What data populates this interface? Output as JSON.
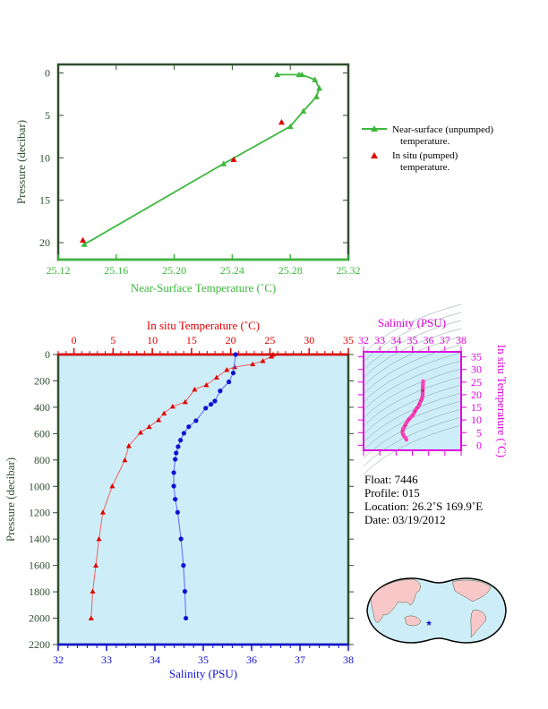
{
  "chart_data": [
    {
      "type": "line",
      "id": "surface",
      "xlabel": "Near-Surface Temperature (˚C)",
      "ylabel": "Pressure (decibar)",
      "xlim": [
        25.12,
        25.32
      ],
      "ylim": [
        -1,
        22
      ],
      "xticks": [
        "25.12",
        "25.16",
        "25.20",
        "25.24",
        "25.28",
        "25.32"
      ],
      "yticks": [
        "0",
        "5",
        "10",
        "15",
        "20"
      ],
      "series": [
        {
          "name": "Near-surface (unpumped) temperature.",
          "color": "#3cb83c",
          "marker": "triangle",
          "line": true,
          "x": [
            25.271,
            25.286,
            25.288,
            25.297,
            25.3,
            25.298,
            25.289,
            25.28,
            25.234,
            25.138
          ],
          "y": [
            0.2,
            0.2,
            0.2,
            0.8,
            1.8,
            2.8,
            4.5,
            6.3,
            10.7,
            20.2
          ]
        },
        {
          "name": "In situ (pumped) temperature.",
          "color": "#e00000",
          "marker": "triangle",
          "line": false,
          "x": [
            25.274,
            25.241,
            25.137
          ],
          "y": [
            5.8,
            10.2,
            19.7
          ]
        }
      ],
      "legend": {
        "placement": "right",
        "entries": [
          [
            "Near-surface (unpumped)",
            "temperature."
          ],
          [
            "In situ (pumped)",
            "temperature."
          ]
        ]
      }
    },
    {
      "type": "line",
      "id": "profile",
      "top_xlabel": "In situ Temperature (˚C)",
      "bottom_xlabel": "Salinity (PSU)",
      "ylabel": "Pressure (decibar)",
      "temp_lim": [
        -2,
        35
      ],
      "sal_lim": [
        32,
        38
      ],
      "ylim": [
        0,
        2200
      ],
      "temp_ticks": [
        "0",
        "5",
        "10",
        "15",
        "20",
        "25",
        "30",
        "35"
      ],
      "sal_ticks": [
        "32",
        "33",
        "34",
        "35",
        "36",
        "37",
        "38"
      ],
      "yticks": [
        "0",
        "200",
        "400",
        "600",
        "800",
        "1000",
        "1200",
        "1400",
        "1600",
        "1800",
        "2000",
        "2200"
      ],
      "temperature": {
        "color": "#e00000",
        "p": [
          0,
          14,
          48,
          73,
          95,
          116,
          174,
          231,
          265,
          360,
          394,
          446,
          496,
          548,
          591,
          693,
          800,
          998,
          1197,
          1399,
          1600,
          1797,
          2000
        ],
        "v": [
          25.4,
          25.2,
          24.1,
          22.8,
          20.5,
          19.5,
          18.2,
          16.9,
          15.4,
          14.2,
          12.6,
          11.5,
          10.8,
          9.6,
          8.5,
          7.0,
          6.5,
          4.9,
          3.7,
          3.2,
          2.8,
          2.4,
          2.2
        ]
      },
      "salinity": {
        "color": "#1010d0",
        "p": [
          0,
          140,
          208,
          276,
          353,
          378,
          407,
          502,
          548,
          597,
          650,
          699,
          747,
          795,
          896,
          998,
          1098,
          1197,
          1399,
          1600,
          1797,
          2000
        ],
        "v": [
          35.67,
          35.62,
          35.53,
          35.35,
          35.24,
          35.16,
          35.05,
          34.85,
          34.7,
          34.6,
          34.53,
          34.48,
          34.44,
          34.42,
          34.39,
          34.39,
          34.42,
          34.47,
          34.54,
          34.59,
          34.62,
          34.64
        ]
      }
    },
    {
      "type": "scatter",
      "id": "ts",
      "xlabel": "Salinity (PSU)",
      "ylabel": "In situ Temperature (˚C)",
      "xlim": [
        32,
        38
      ],
      "ylim": [
        -2,
        37
      ],
      "xticks": [
        "32",
        "33",
        "34",
        "35",
        "36",
        "37",
        "38"
      ],
      "yticks": [
        "0",
        "5",
        "10",
        "15",
        "20",
        "25",
        "30",
        "35"
      ]
    }
  ],
  "info": {
    "float": "Float:  7446",
    "profile": "Profile:  015",
    "location": "Location:  26.2˚S  169.9˚E",
    "date": "Date:  03/19/2012"
  }
}
